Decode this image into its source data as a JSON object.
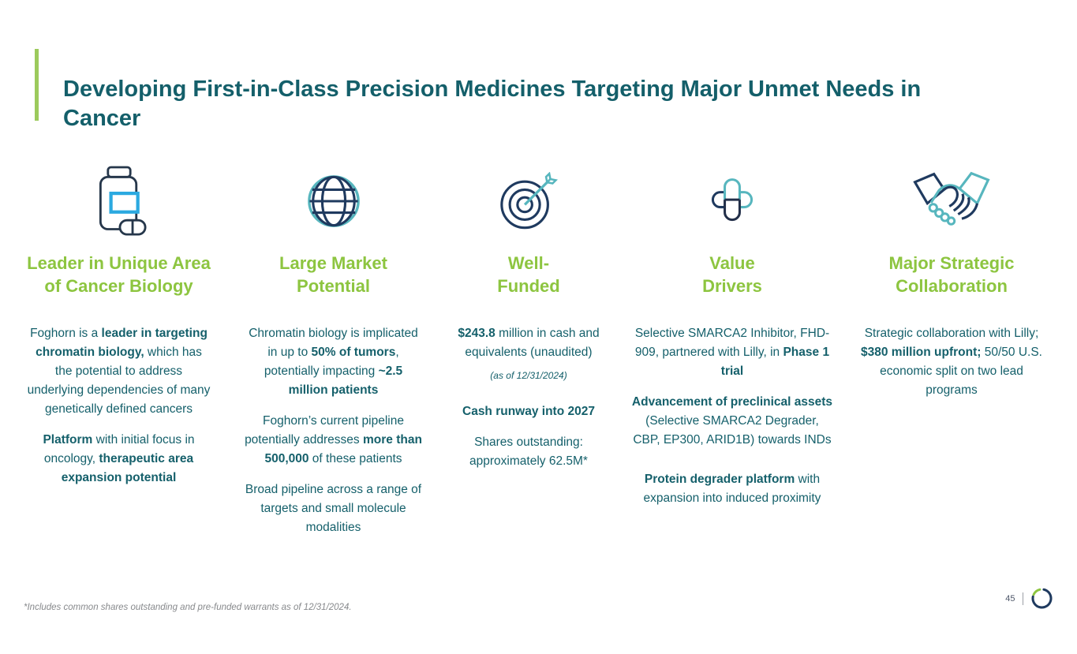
{
  "slide": {
    "title": "Developing First-in-Class Precision Medicines Targeting Major Unmet Needs in Cancer",
    "footnote": "*Includes common shares outstanding and pre-funded warrants as of 12/31/2024.",
    "page_number": "45"
  },
  "colors": {
    "heading_green": "#8DC540",
    "accent_bar_green": "#9CCA5C",
    "text_teal": "#145F6A",
    "icon_navy": "#1F3A5F",
    "icon_navy_dark": "#222F49",
    "icon_teal": "#57B6BE",
    "icon_blue": "#2BA9E0",
    "footnote_gray": "#87898C"
  },
  "columns": [
    {
      "icon": "pill-bottle-icon",
      "heading_lines": [
        "Leader in Unique Area",
        "of Cancer Biology"
      ],
      "paragraphs": [
        {
          "segments": [
            {
              "t": "Foghorn is a "
            },
            {
              "t": "leader in targeting chromatin biology,",
              "b": true
            },
            {
              "t": " which has the potential to address underlying dependencies of many genetically defined cancers"
            }
          ]
        },
        {
          "segments": [
            {
              "t": "Platform",
              "b": true
            },
            {
              "t": " with initial focus in oncology, "
            },
            {
              "t": "therapeutic area expansion potential",
              "b": true
            }
          ]
        }
      ]
    },
    {
      "icon": "globe-icon",
      "heading_lines": [
        "Large Market",
        "Potential"
      ],
      "paragraphs": [
        {
          "segments": [
            {
              "t": "Chromatin biology is implicated in up to "
            },
            {
              "t": "50% of tumors",
              "b": true
            },
            {
              "t": ", potentially impacting "
            },
            {
              "t": "~2.5 million patients",
              "b": true
            }
          ]
        },
        {
          "segments": [
            {
              "t": "Foghorn’s current pipeline potentially addresses "
            },
            {
              "t": "more than 500,000",
              "b": true
            },
            {
              "t": " of these patients"
            }
          ]
        },
        {
          "segments": [
            {
              "t": "Broad pipeline across a range of targets and small molecule modalities"
            }
          ]
        }
      ]
    },
    {
      "icon": "target-arrow-icon",
      "heading_lines": [
        "Well-",
        "Funded"
      ],
      "paragraphs": [
        {
          "segments": [
            {
              "t": "$243.8",
              "b": true
            },
            {
              "t": " million in cash and equivalents (unaudited)"
            }
          ]
        },
        {
          "style": "note",
          "segments": [
            {
              "t": "(as of 12/31/2024)"
            }
          ]
        },
        {
          "gap_before": true,
          "segments": [
            {
              "t": "Cash runway into 2027",
              "b": true
            }
          ]
        },
        {
          "segments": [
            {
              "t": "Shares outstanding: approximately 62.5M*"
            }
          ]
        }
      ]
    },
    {
      "icon": "capsule-cross-icon",
      "heading_lines": [
        "Value",
        "Drivers"
      ],
      "paragraphs": [
        {
          "segments": [
            {
              "t": "Selective SMARCA2 Inhibitor, FHD-909, partnered with Lilly, in "
            },
            {
              "t": "Phase 1 trial",
              "b": true
            }
          ]
        },
        {
          "segments": [
            {
              "t": "Advancement of preclinical assets",
              "b": true
            },
            {
              "t": " (Selective SMARCA2 Degrader, CBP, EP300, ARID1B) towards INDs"
            }
          ]
        },
        {
          "gap_before": true,
          "segments": [
            {
              "t": "Protein degrader platform",
              "b": true
            },
            {
              "t": " with expansion into induced proximity"
            }
          ]
        }
      ]
    },
    {
      "icon": "handshake-icon",
      "heading_lines": [
        "Major Strategic",
        "Collaboration"
      ],
      "paragraphs": [
        {
          "segments": [
            {
              "t": "Strategic collaboration with Lilly; "
            },
            {
              "t": "$380 million upfront;",
              "b": true
            },
            {
              "t": " 50/50 U.S. economic split on two lead programs"
            }
          ]
        }
      ]
    }
  ]
}
